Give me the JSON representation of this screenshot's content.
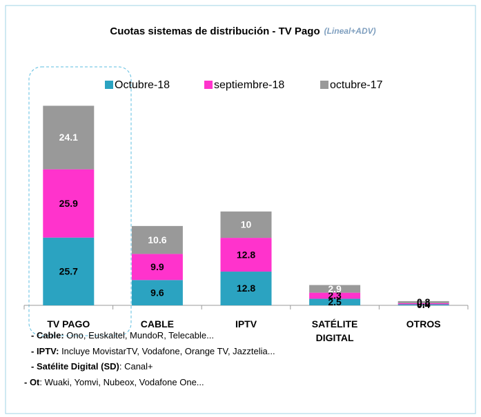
{
  "chart_data": {
    "type": "stacked_bar",
    "title": "Cuotas sistemas de distribución - TV Pago",
    "subtitle": "(Lineal+ADV)",
    "categories": [
      "TV PAGO",
      "CABLE",
      "IPTV",
      "SATÉLITE DIGITAL",
      "OTROS"
    ],
    "series": [
      {
        "name": "Octubre-18",
        "color": "#2ba3c1",
        "values": [
          25.7,
          9.6,
          12.8,
          2.5,
          0.4
        ]
      },
      {
        "name": "septiembre-18",
        "color": "#ff33cc",
        "values": [
          25.9,
          9.9,
          12.8,
          2.3,
          0.4
        ]
      },
      {
        "name": "octubre-17",
        "color": "#999999",
        "values": [
          24.1,
          10.6,
          10,
          2.9,
          0.8
        ]
      }
    ],
    "ylim": [
      0,
      80
    ],
    "notes": [
      {
        "label": "- Cable:",
        "text": " Ono, Euskaltel, MundoR, Telecable..."
      },
      {
        "label": "- IPTV:",
        "text": " Incluye MovistarTV, Vodafone, Orange TV, Jazztelia..."
      },
      {
        "label": "- Satélite Digital (SD)",
        "text": ": Canal+"
      },
      {
        "label": "- Ot",
        "text": ": Wuaki, Yomvi, Nubeox, Vodafone One..."
      }
    ]
  }
}
